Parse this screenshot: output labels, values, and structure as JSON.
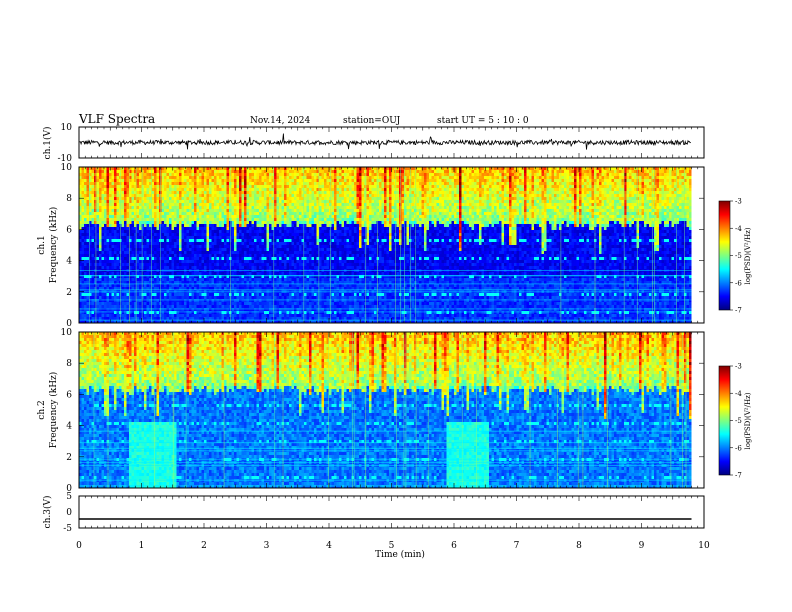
{
  "header": {
    "title": "VLF Spectra",
    "date": "Nov.14, 2024",
    "station": "station=OUJ",
    "start": "start  UT =   5 : 10 : 0"
  },
  "chart_data": [
    {
      "type": "line",
      "name": "ch1-waveform",
      "ylabel": "ch.1(V)",
      "ylim": [
        -10,
        10
      ],
      "yticks": [
        "10",
        "-10"
      ],
      "xlim": [
        0,
        10
      ],
      "x_range_data": [
        0,
        9.8
      ],
      "baseline": 0
    },
    {
      "type": "heatmap",
      "name": "ch1-spectrogram",
      "ylabel": "ch.1",
      "ylabel2": "Frequency (kHz)",
      "ylim": [
        0,
        10
      ],
      "yticks": [
        "0",
        "2",
        "4",
        "6",
        "8",
        "10"
      ],
      "xlim": [
        0,
        10
      ],
      "x_range_data": [
        0,
        9.8
      ],
      "colorbar": {
        "label": "log(PSD)(V²/Hz)",
        "range": [
          -7,
          -3
        ],
        "ticks": [
          "-3",
          "-4",
          "-5",
          "-6",
          "-7"
        ]
      },
      "bright_segments": []
    },
    {
      "type": "heatmap",
      "name": "ch2-spectrogram",
      "ylabel": "ch.2",
      "ylabel2": "Frequency (kHz)",
      "ylim": [
        0,
        10
      ],
      "yticks": [
        "0",
        "2",
        "4",
        "6",
        "8",
        "10"
      ],
      "xlim": [
        0,
        10
      ],
      "x_range_data": [
        0,
        9.8
      ],
      "colorbar": {
        "label": "log(PSD)(V²/Hz)",
        "range": [
          -7,
          -3
        ],
        "ticks": [
          "-3",
          "-4",
          "-5",
          "-6",
          "-7"
        ]
      },
      "bright_segments": [
        [
          0.8,
          1.55
        ],
        [
          5.85,
          6.55
        ]
      ]
    },
    {
      "type": "line",
      "name": "ch3-waveform",
      "ylabel": "ch.3(V)",
      "ylim": [
        -5,
        5
      ],
      "yticks": [
        "5",
        "0",
        "-5"
      ],
      "xlim": [
        0,
        10
      ],
      "x_range_data": [
        0,
        9.8
      ],
      "baseline": -2.2
    }
  ],
  "xaxis": {
    "label": "Time (min)",
    "ticks": [
      "0",
      "1",
      "2",
      "3",
      "4",
      "5",
      "6",
      "7",
      "8",
      "9",
      "10"
    ]
  },
  "colors": {
    "jet_low": "#00007f",
    "jet_mid": "#7fff7f",
    "jet_high": "#7f0000",
    "frame": "#000000"
  }
}
